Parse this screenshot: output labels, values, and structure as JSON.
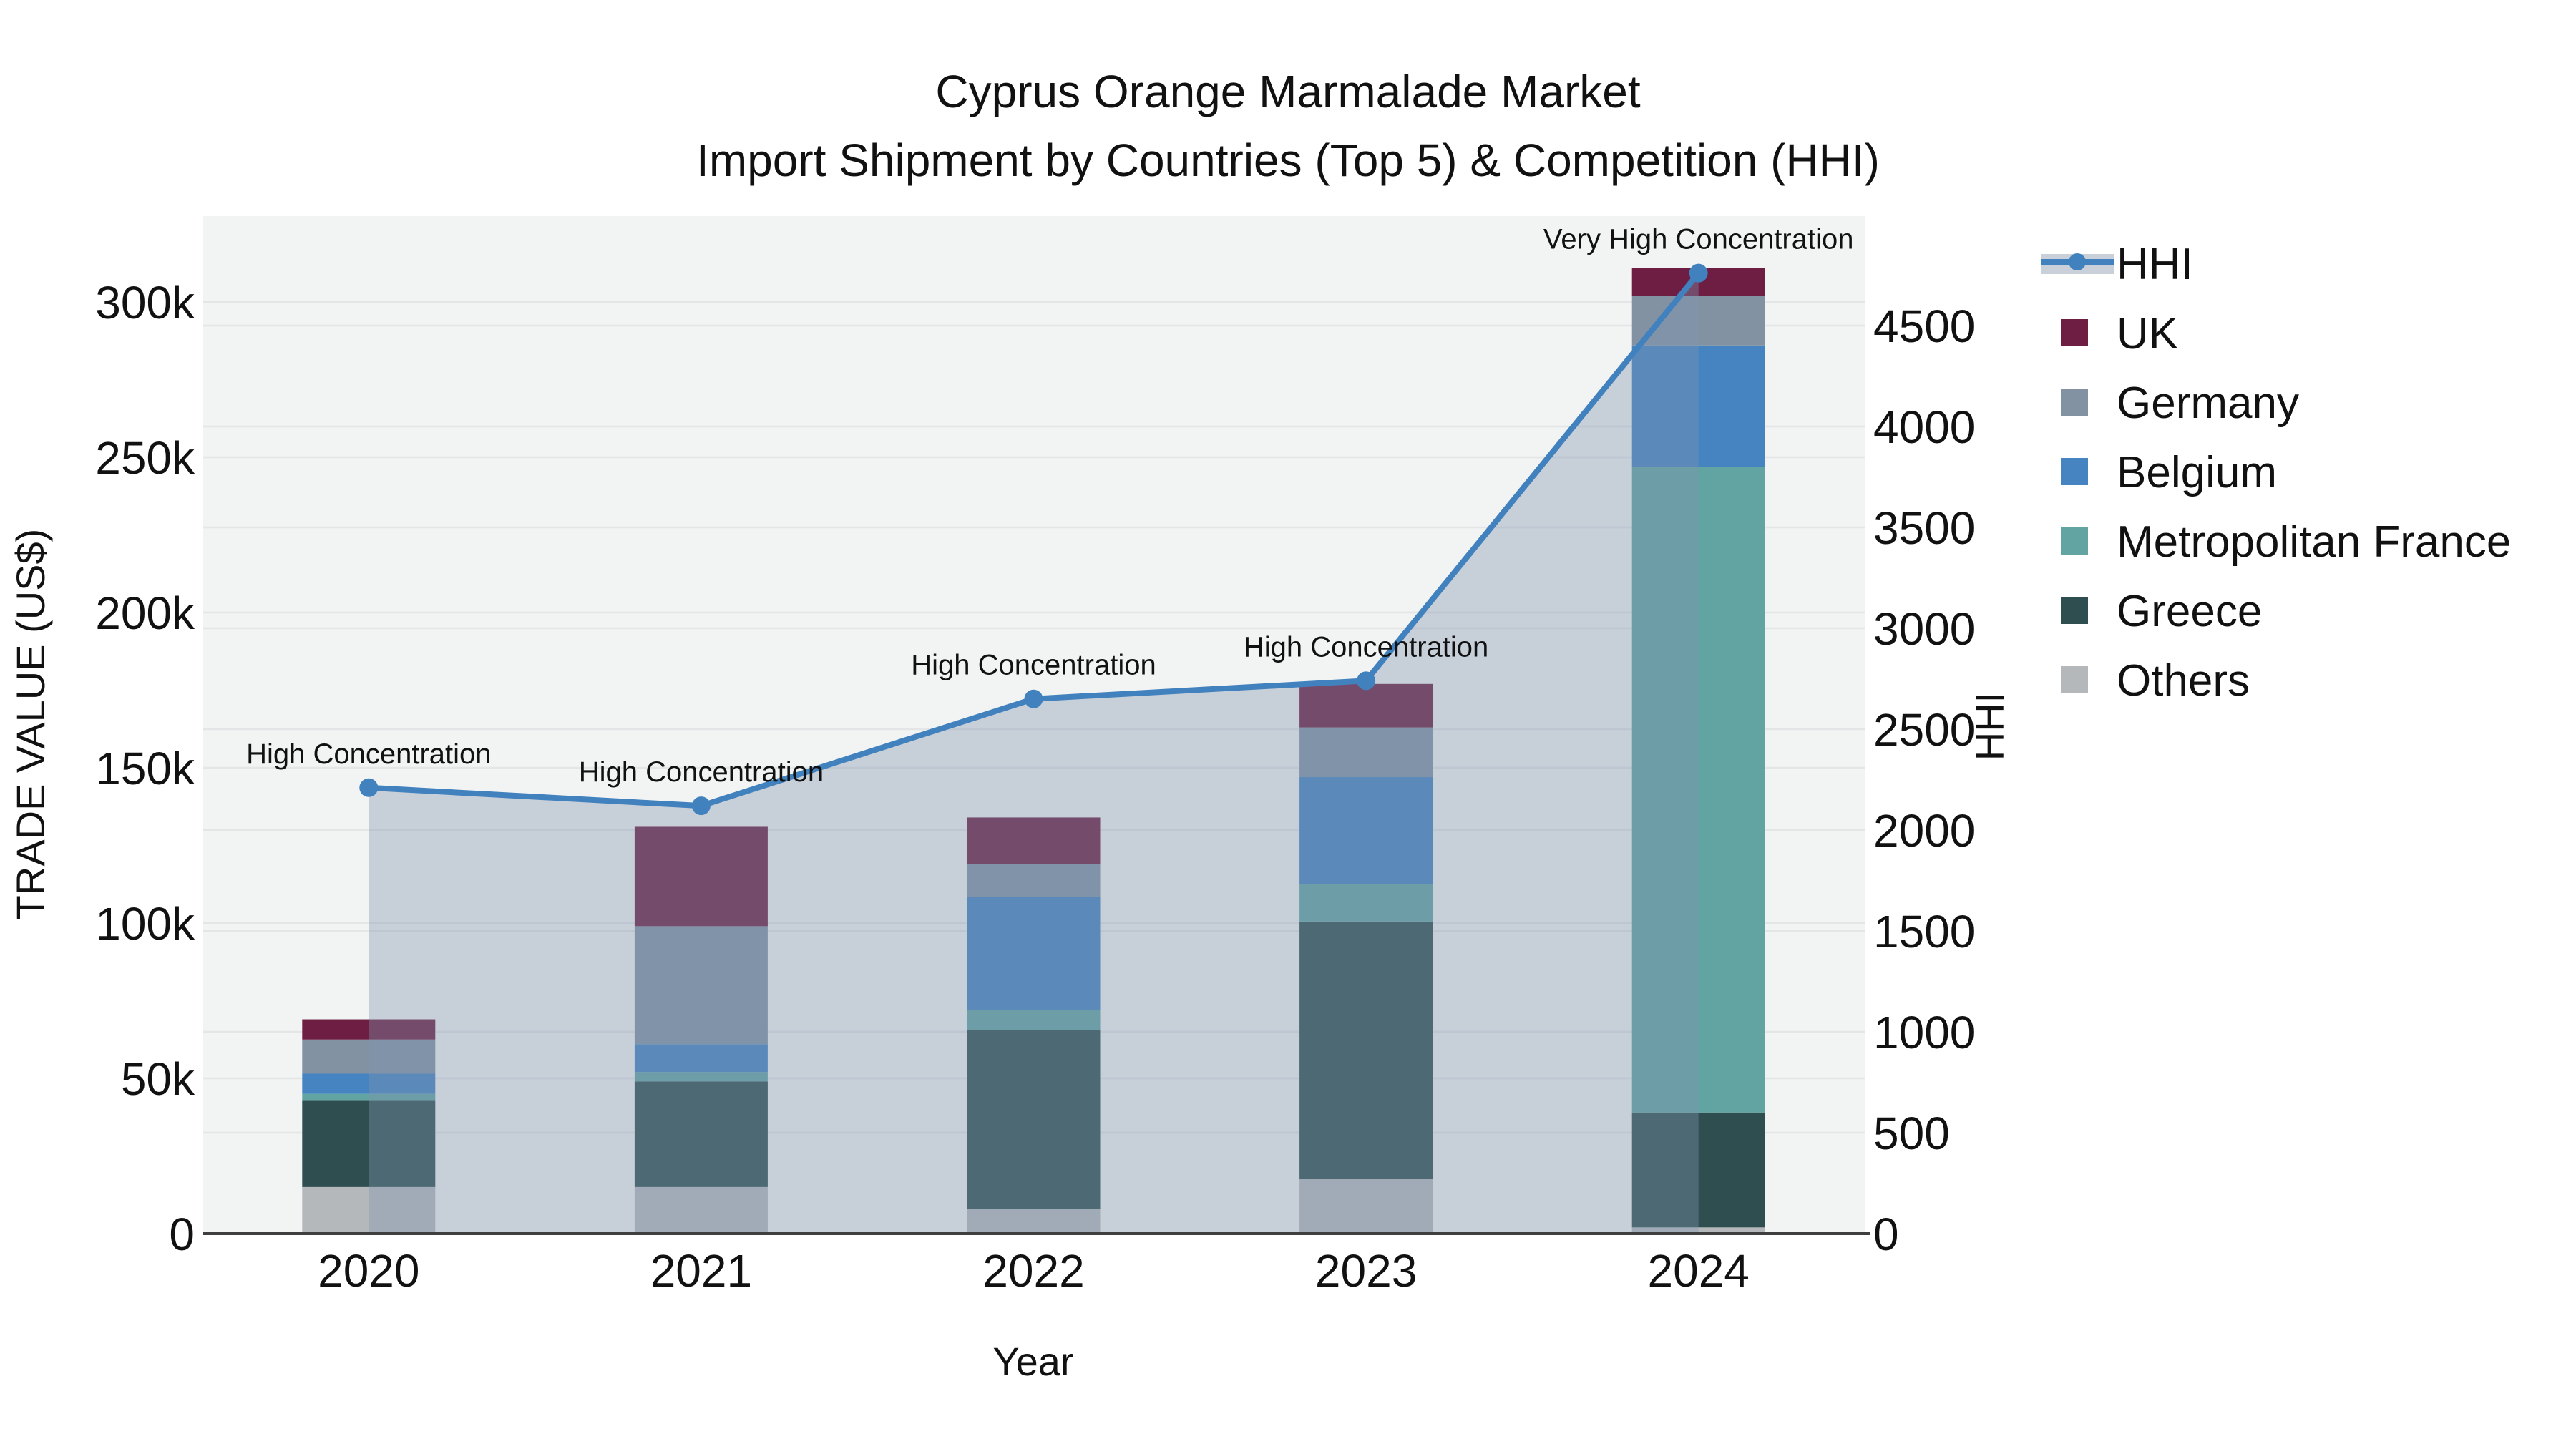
{
  "chart_data": {
    "type": "bar+line",
    "title_line1": "Cyprus Orange Marmalade Market",
    "title_line2": "Import Shipment by Countries (Top 5) & Competition (HHI)",
    "xlabel": "Year",
    "categories": [
      "2020",
      "2021",
      "2022",
      "2023",
      "2024"
    ],
    "y_left": {
      "label": "TRADE VALUE (US$)",
      "tick_values": [
        0,
        50000,
        100000,
        150000,
        200000,
        250000,
        300000
      ],
      "tick_labels": [
        "0",
        "50k",
        "100k",
        "150k",
        "200k",
        "250k",
        "300k"
      ],
      "max_value": 327000
    },
    "y_right": {
      "label": "HHI",
      "tick_values": [
        0,
        500,
        1000,
        1500,
        2000,
        2500,
        3000,
        3500,
        4000,
        4500
      ],
      "tick_labels": [
        "0",
        "500",
        "1000",
        "1500",
        "2000",
        "2500",
        "3000",
        "3500",
        "4000",
        "4500"
      ],
      "max_value": 5040
    },
    "bar_series_bottom_to_top": [
      {
        "name": "Others",
        "color": "#b5b8bb",
        "values": [
          15000,
          15000,
          8000,
          17500,
          2000
        ]
      },
      {
        "name": "Greece",
        "color": "#2e4e50",
        "values": [
          28000,
          34000,
          57500,
          83000,
          37000
        ]
      },
      {
        "name": "Metropolitan France",
        "color": "#62a4a2",
        "values": [
          2000,
          3000,
          6500,
          12000,
          208000
        ]
      },
      {
        "name": "Belgium",
        "color": "#4584c0",
        "values": [
          6500,
          9000,
          36500,
          34500,
          39000
        ]
      },
      {
        "name": "Germany",
        "color": "#8292a3",
        "values": [
          11000,
          38000,
          10500,
          16000,
          16000
        ]
      },
      {
        "name": "UK",
        "color": "#6e1e42",
        "values": [
          6500,
          32000,
          15000,
          14000,
          9000
        ]
      }
    ],
    "bar_totals": [
      69000,
      131000,
      134000,
      177000,
      311000
    ],
    "line_series": {
      "name": "HHI",
      "color": "#4181bd",
      "fill_color": "rgba(130,150,175,0.38)",
      "values": [
        2210,
        2120,
        2650,
        2740,
        4760
      ]
    },
    "annotations": [
      {
        "category": "2020",
        "text": "High Concentration"
      },
      {
        "category": "2021",
        "text": "High Concentration"
      },
      {
        "category": "2022",
        "text": "High Concentration"
      },
      {
        "category": "2023",
        "text": "High Concentration"
      },
      {
        "category": "2024",
        "text": "Very High Concentration"
      }
    ],
    "legend": [
      {
        "name": "HHI",
        "type": "line",
        "color": "#4181bd",
        "band_color": "#c9d0da"
      },
      {
        "name": "UK",
        "type": "swatch",
        "color": "#6e1e42"
      },
      {
        "name": "Germany",
        "type": "swatch",
        "color": "#8292a3"
      },
      {
        "name": "Belgium",
        "type": "swatch",
        "color": "#4584c0"
      },
      {
        "name": "Metropolitan France",
        "type": "swatch",
        "color": "#62a4a2"
      },
      {
        "name": "Greece",
        "type": "swatch",
        "color": "#2e4e50"
      },
      {
        "name": "Others",
        "type": "swatch",
        "color": "#b5b8bb"
      }
    ],
    "style": {
      "plot_bg": "#f2f3f3",
      "grid_color": "#e4e5e6",
      "axis_line_color": "#3f3f3f",
      "text_color": "#111111"
    }
  }
}
